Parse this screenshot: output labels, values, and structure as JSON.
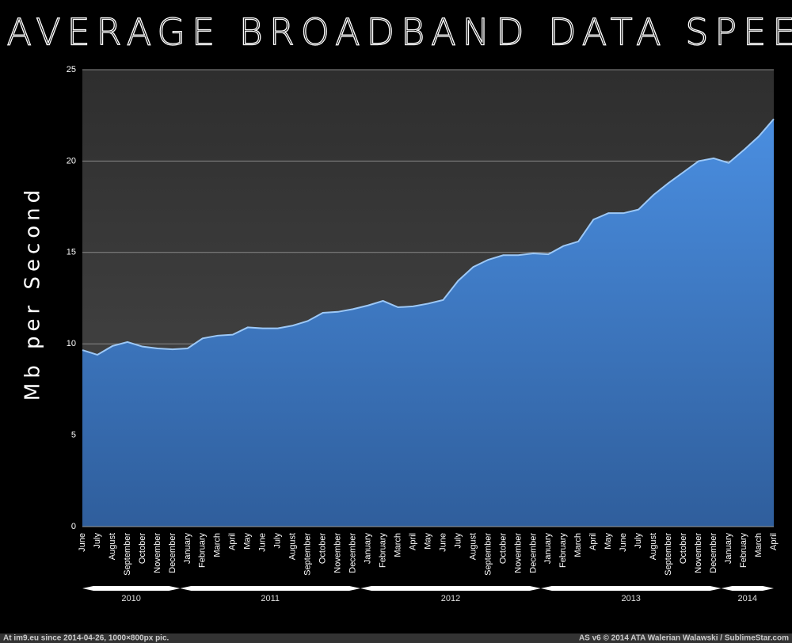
{
  "chart_data": {
    "type": "area",
    "title": "US AVERAGE BROADBAND DATA SPEEDS",
    "y_label": "Mb per Second",
    "categories": [
      "June",
      "July",
      "August",
      "September",
      "October",
      "November",
      "December",
      "January",
      "February",
      "March",
      "April",
      "May",
      "June",
      "July",
      "August",
      "September",
      "October",
      "November",
      "December",
      "January",
      "February",
      "March",
      "April",
      "May",
      "June",
      "July",
      "August",
      "September",
      "October",
      "November",
      "December",
      "January",
      "February",
      "March",
      "April",
      "May",
      "June",
      "July",
      "August",
      "September",
      "October",
      "November",
      "December",
      "January",
      "February",
      "March",
      "April"
    ],
    "year_groups": [
      {
        "label": "2010",
        "months": 7
      },
      {
        "label": "2011",
        "months": 12
      },
      {
        "label": "2012",
        "months": 12
      },
      {
        "label": "2013",
        "months": 12
      },
      {
        "label": "2014",
        "months": 4
      }
    ],
    "series": [
      {
        "name": "Mb per Second",
        "color": "#4a8ee0",
        "values": [
          9.66,
          9.4,
          9.88,
          10.1,
          9.85,
          9.75,
          9.7,
          9.75,
          10.3,
          10.45,
          10.5,
          10.9,
          10.85,
          10.85,
          11.0,
          11.25,
          11.7,
          11.75,
          11.9,
          12.1,
          12.35,
          12.0,
          12.05,
          12.2,
          12.4,
          13.45,
          14.2,
          14.6,
          14.85,
          14.85,
          14.95,
          14.9,
          15.35,
          15.6,
          16.8,
          17.15,
          17.15,
          17.35,
          18.15,
          18.8,
          19.4,
          20.0,
          20.15,
          19.9,
          20.6,
          21.35,
          22.3
        ]
      }
    ],
    "ylim": [
      0,
      25
    ],
    "yticks": [
      0,
      5,
      10,
      15,
      20,
      25
    ],
    "grid": true
  },
  "footer": {
    "left": "At im9.eu  since 2014-04-26, 1000×800px pic.",
    "right": "AS v6 © 2014 ATA Walerian Walawski / SublimeStar.com"
  }
}
